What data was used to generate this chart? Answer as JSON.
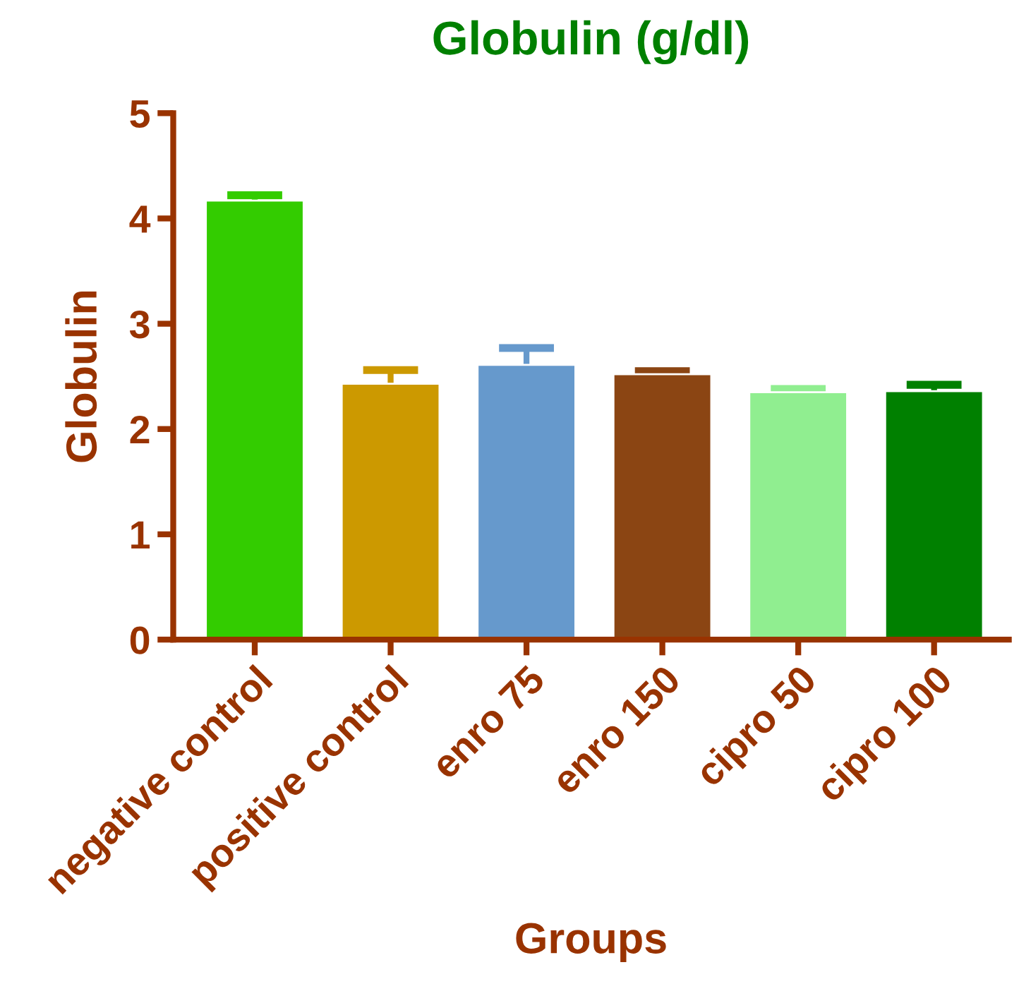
{
  "chart_data": {
    "type": "bar",
    "title": "Globulin (g/dl)",
    "xlabel": "Groups",
    "ylabel": "Globulin",
    "categories": [
      "negative control",
      "positive control",
      "enro 75",
      "enro 150",
      "cipro 50",
      "cipro 100"
    ],
    "values": [
      4.17,
      2.43,
      2.61,
      2.52,
      2.35,
      2.36
    ],
    "errors": [
      0.05,
      0.13,
      0.16,
      0.03,
      0.03,
      0.06
    ],
    "colors": [
      "#33cc00",
      "#cc9900",
      "#6699cc",
      "#8b4513",
      "#90ee90",
      "#008000"
    ],
    "ylim": [
      0,
      5
    ],
    "yticks": [
      0,
      1,
      2,
      3,
      4,
      5
    ],
    "grid": false
  }
}
